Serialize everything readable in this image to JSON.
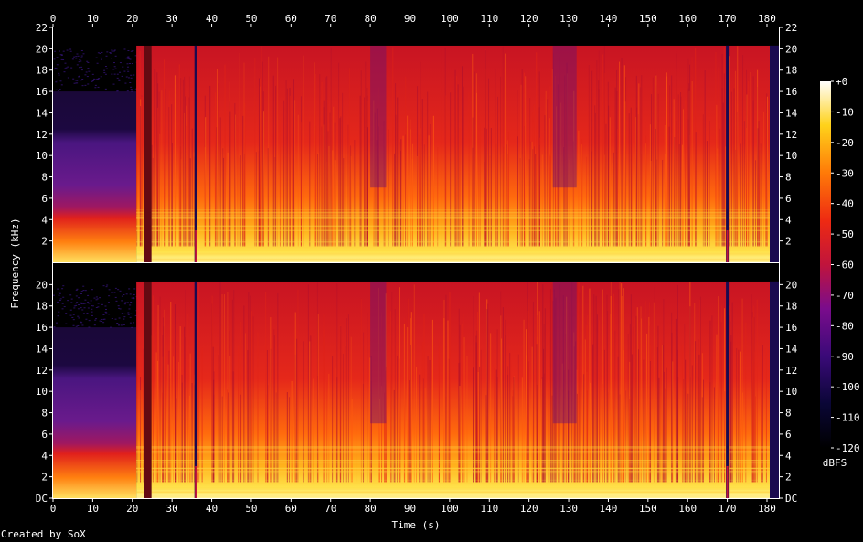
{
  "chart_data": {
    "type": "heatmap",
    "title": "",
    "xlabel": "Time (s)",
    "ylabel": "Frequency (kHz)",
    "xlim": [
      0,
      183
    ],
    "x_ticks": [
      "0",
      "10",
      "20",
      "30",
      "40",
      "50",
      "60",
      "70",
      "80",
      "90",
      "100",
      "110",
      "120",
      "130",
      "140",
      "150",
      "160",
      "170",
      "180"
    ],
    "channels": [
      {
        "ylim_khz": [
          0,
          22
        ],
        "y_ticks_left": [
          "2",
          "4",
          "6",
          "8",
          "10",
          "12",
          "14",
          "16",
          "18",
          "20",
          "22"
        ],
        "y_ticks_right": [
          "2",
          "4",
          "6",
          "8",
          "10",
          "12",
          "14",
          "16",
          "18",
          "20",
          "22"
        ]
      },
      {
        "ylim_khz": [
          0,
          22
        ],
        "y_ticks_left": [
          "DC",
          "2",
          "4",
          "6",
          "8",
          "10",
          "12",
          "14",
          "16",
          "18",
          "20"
        ],
        "y_ticks_right": [
          "DC",
          "2",
          "4",
          "6",
          "8",
          "10",
          "12",
          "14",
          "16",
          "18",
          "20"
        ]
      }
    ],
    "colorbar": {
      "unit": "dBFS",
      "range": [
        -120,
        0
      ],
      "ticks": [
        "+0",
        "-10",
        "-20",
        "-30",
        "-40",
        "-50",
        "-60",
        "-70",
        "-80",
        "-90",
        "-100",
        "-110",
        "-120"
      ]
    },
    "segments": [
      {
        "t0": 0,
        "t1": 21,
        "desc_level": "quiet"
      },
      {
        "t0": 21,
        "t1": 183,
        "desc_level": "loud"
      }
    ],
    "dropouts_s": [
      36,
      170
    ]
  },
  "footer": {
    "credit": "Created by SoX"
  }
}
